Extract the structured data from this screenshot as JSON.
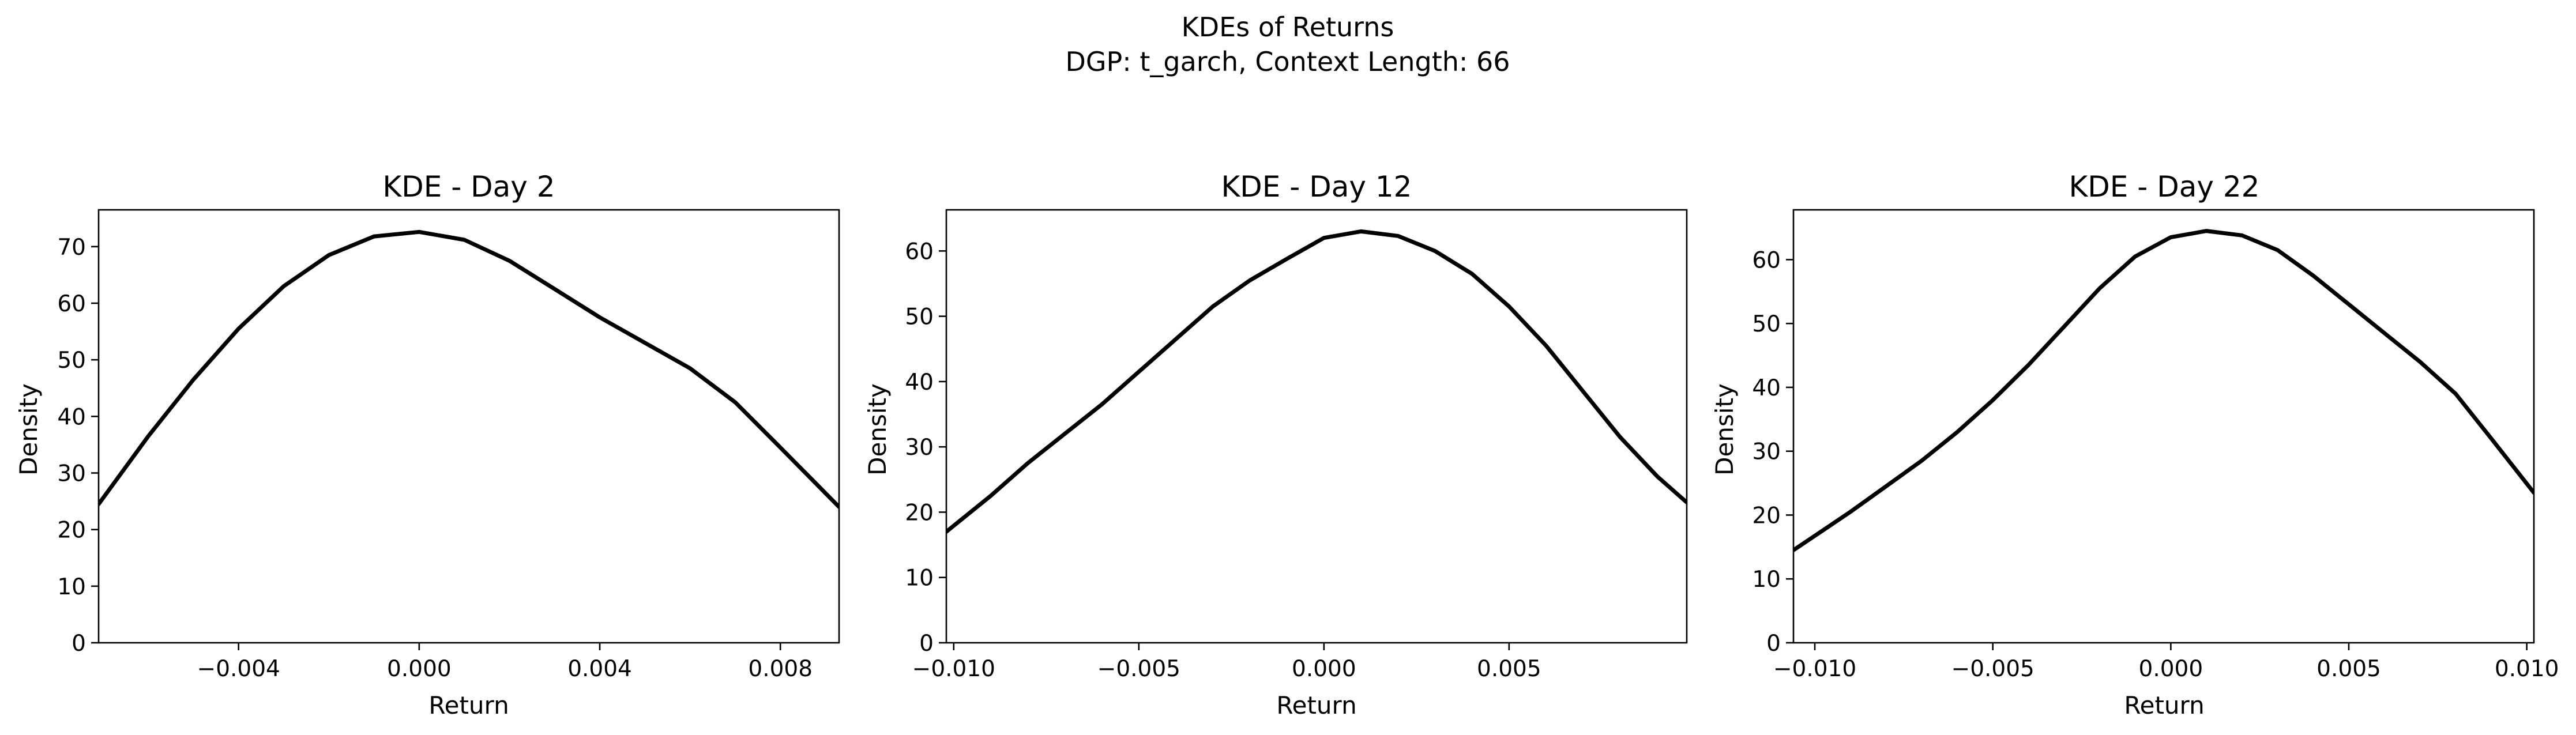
{
  "figure": {
    "suptitle_line1": "KDEs of Returns",
    "suptitle_line2": "DGP: t_garch, Context Length: 66"
  },
  "chart_data": [
    {
      "type": "line",
      "title": "KDE - Day 2",
      "xlabel": "Return",
      "ylabel": "Density",
      "xlim": [
        -0.0071,
        0.0093
      ],
      "ylim": [
        0,
        76.5
      ],
      "xticks": [
        -0.004,
        0.0,
        0.004,
        0.008
      ],
      "xtick_labels": [
        "−0.004",
        "0.000",
        "0.004",
        "0.008"
      ],
      "yticks": [
        0,
        10,
        20,
        30,
        40,
        50,
        60,
        70
      ],
      "ytick_labels": [
        "0",
        "10",
        "20",
        "30",
        "40",
        "50",
        "60",
        "70"
      ],
      "grid": false,
      "x": [
        -0.0071,
        -0.006,
        -0.005,
        -0.004,
        -0.003,
        -0.002,
        -0.001,
        0.0,
        0.001,
        0.002,
        0.003,
        0.004,
        0.005,
        0.006,
        0.007,
        0.008,
        0.0093
      ],
      "y": [
        24.5,
        36.5,
        46.5,
        55.5,
        63.0,
        68.5,
        71.8,
        72.6,
        71.2,
        67.5,
        62.5,
        57.5,
        53.0,
        48.5,
        42.5,
        34.5,
        24.0
      ]
    },
    {
      "type": "line",
      "title": "KDE - Day 12",
      "xlabel": "Return",
      "ylabel": "Density",
      "xlim": [
        -0.0102,
        0.0098
      ],
      "ylim": [
        0,
        66.3
      ],
      "xticks": [
        -0.01,
        -0.005,
        0.0,
        0.005
      ],
      "xtick_labels": [
        "−0.010",
        "−0.005",
        "0.000",
        "0.005"
      ],
      "yticks": [
        0,
        10,
        20,
        30,
        40,
        50,
        60
      ],
      "ytick_labels": [
        "0",
        "10",
        "20",
        "30",
        "40",
        "50",
        "60"
      ],
      "grid": false,
      "x": [
        -0.0102,
        -0.009,
        -0.008,
        -0.007,
        -0.006,
        -0.005,
        -0.004,
        -0.003,
        -0.002,
        -0.001,
        0.0,
        0.001,
        0.002,
        0.003,
        0.004,
        0.005,
        0.006,
        0.007,
        0.008,
        0.009,
        0.0098
      ],
      "y": [
        17.0,
        22.5,
        27.5,
        32.0,
        36.5,
        41.5,
        46.5,
        51.5,
        55.5,
        58.8,
        62.0,
        63.0,
        62.3,
        60.0,
        56.5,
        51.5,
        45.5,
        38.5,
        31.5,
        25.5,
        21.5
      ]
    },
    {
      "type": "line",
      "title": "KDE - Day 22",
      "xlabel": "Return",
      "ylabel": "Density",
      "xlim": [
        -0.0106,
        0.0102
      ],
      "ylim": [
        0,
        67.8
      ],
      "xticks": [
        -0.01,
        -0.005,
        0.0,
        0.005,
        0.01
      ],
      "xtick_labels": [
        "−0.010",
        "−0.005",
        "0.000",
        "0.005",
        "0.010"
      ],
      "yticks": [
        0,
        10,
        20,
        30,
        40,
        50,
        60
      ],
      "ytick_labels": [
        "0",
        "10",
        "20",
        "30",
        "40",
        "50",
        "60"
      ],
      "grid": false,
      "x": [
        -0.0106,
        -0.009,
        -0.008,
        -0.007,
        -0.006,
        -0.005,
        -0.004,
        -0.003,
        -0.002,
        -0.001,
        0.0,
        0.001,
        0.002,
        0.003,
        0.004,
        0.005,
        0.006,
        0.007,
        0.008,
        0.009,
        0.0102
      ],
      "y": [
        14.5,
        20.5,
        24.5,
        28.5,
        33.0,
        38.0,
        43.5,
        49.5,
        55.5,
        60.5,
        63.5,
        64.5,
        63.8,
        61.5,
        57.5,
        53.0,
        48.5,
        44.0,
        39.0,
        32.0,
        23.5
      ]
    }
  ]
}
